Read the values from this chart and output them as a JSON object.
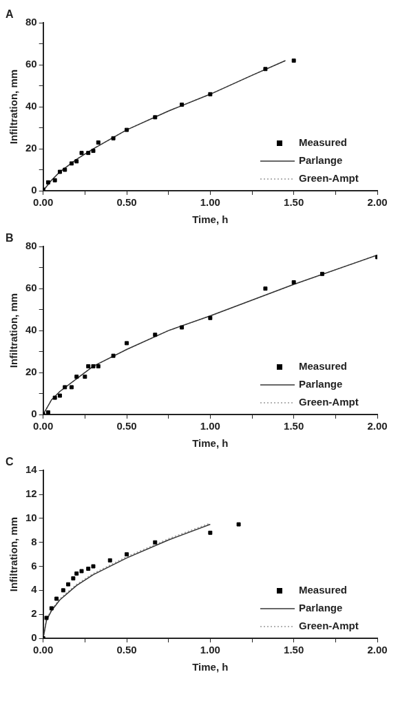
{
  "chart_data": [
    {
      "type": "scatter",
      "title": "A",
      "xlabel": "Time, h",
      "ylabel": "Infiltration, mm",
      "xlim": [
        0,
        2
      ],
      "ylim": [
        0,
        80
      ],
      "xticks": [
        {
          "value": 0,
          "label": "0.00"
        },
        {
          "value": 0.25,
          "label": null
        },
        {
          "value": 0.5,
          "label": "0.50"
        },
        {
          "value": 0.75,
          "label": null
        },
        {
          "value": 1,
          "label": "1.00"
        },
        {
          "value": 1.25,
          "label": null
        },
        {
          "value": 1.5,
          "label": "1.50"
        },
        {
          "value": 1.75,
          "label": null
        },
        {
          "value": 2,
          "label": "2.00"
        }
      ],
      "yticks": [
        0,
        {
          "value": 10,
          "label": null
        },
        20,
        {
          "value": 30,
          "label": null
        },
        40,
        {
          "value": 50,
          "label": null
        },
        60,
        {
          "value": 70,
          "label": null
        },
        80
      ],
      "legend": "bottom right",
      "grid": false,
      "series": [
        {
          "name": "Measured",
          "type": "scatter",
          "marker": "square",
          "color": "#000000",
          "x": [
            0,
            0.03,
            0.07,
            0.1,
            0.13,
            0.17,
            0.2,
            0.23,
            0.27,
            0.3,
            0.33,
            0.42,
            0.5,
            0.67,
            0.83,
            1.0,
            1.33,
            1.5
          ],
          "values": [
            0.5,
            4,
            5,
            9,
            10,
            13,
            14,
            18,
            18,
            19,
            23,
            25,
            29,
            35,
            41,
            46,
            58,
            62
          ]
        },
        {
          "name": "Parlange",
          "type": "line",
          "line_style": "solid",
          "color": "#333333",
          "x": [
            0,
            0.05,
            0.1,
            0.2,
            0.3,
            0.5,
            0.75,
            1.0,
            1.25,
            1.45
          ],
          "values": [
            0,
            5,
            9,
            15,
            20,
            29,
            38,
            46,
            55,
            62
          ]
        },
        {
          "name": "Green-Ampt",
          "type": "line",
          "line_style": "dotted",
          "color": "#999999",
          "x": [
            0,
            0.05,
            0.1,
            0.2,
            0.3,
            0.5,
            0.75,
            1.0,
            1.25,
            1.45
          ],
          "values": [
            0,
            5,
            9,
            15,
            20,
            29,
            38,
            46,
            55,
            62
          ]
        }
      ]
    },
    {
      "type": "scatter",
      "title": "B",
      "xlabel": "Time, h",
      "ylabel": "Infiltration, mm",
      "xlim": [
        0,
        2
      ],
      "ylim": [
        0,
        80
      ],
      "xticks": [
        {
          "value": 0,
          "label": "0.00"
        },
        {
          "value": 0.25,
          "label": null
        },
        {
          "value": 0.5,
          "label": "0.50"
        },
        {
          "value": 0.75,
          "label": null
        },
        {
          "value": 1,
          "label": "1.00"
        },
        {
          "value": 1.25,
          "label": null
        },
        {
          "value": 1.5,
          "label": "1.50"
        },
        {
          "value": 1.75,
          "label": null
        },
        {
          "value": 2,
          "label": "2.00"
        }
      ],
      "yticks": [
        0,
        {
          "value": 10,
          "label": null
        },
        20,
        {
          "value": 30,
          "label": null
        },
        40,
        {
          "value": 50,
          "label": null
        },
        60,
        {
          "value": 70,
          "label": null
        },
        80
      ],
      "legend": "bottom right",
      "grid": false,
      "series": [
        {
          "name": "Measured",
          "type": "scatter",
          "marker": "square",
          "color": "#000000",
          "x": [
            0,
            0.03,
            0.07,
            0.1,
            0.13,
            0.17,
            0.2,
            0.25,
            0.27,
            0.3,
            0.33,
            0.42,
            0.5,
            0.67,
            0.83,
            1.0,
            1.33,
            1.5,
            1.67,
            2.0
          ],
          "values": [
            0,
            1,
            8,
            9,
            13,
            13,
            18,
            18,
            23,
            23,
            23,
            28,
            34,
            38,
            41.5,
            46,
            60,
            63,
            67,
            75
          ]
        },
        {
          "name": "Parlange",
          "type": "line",
          "line_style": "solid",
          "color": "#333333",
          "x": [
            0,
            0.05,
            0.1,
            0.2,
            0.3,
            0.5,
            0.75,
            1.0,
            1.5,
            2.0
          ],
          "values": [
            0,
            7,
            11,
            17,
            23,
            31,
            40,
            47,
            62,
            76
          ]
        },
        {
          "name": "Green-Ampt",
          "type": "line",
          "line_style": "dotted",
          "color": "#999999",
          "x": [
            0,
            0.05,
            0.1,
            0.2,
            0.3,
            0.5,
            0.75,
            1.0,
            1.5,
            2.0
          ],
          "values": [
            0,
            7,
            11,
            17,
            23,
            31,
            40,
            47,
            62,
            76
          ]
        }
      ]
    },
    {
      "type": "scatter",
      "title": "C",
      "xlabel": "Time, h",
      "ylabel": "Infiltration, mm",
      "xlim": [
        0,
        2
      ],
      "ylim": [
        0,
        14
      ],
      "xticks": [
        {
          "value": 0,
          "label": "0.00"
        },
        {
          "value": 0.25,
          "label": null
        },
        {
          "value": 0.5,
          "label": "0.50"
        },
        {
          "value": 0.75,
          "label": null
        },
        {
          "value": 1,
          "label": "1.00"
        },
        {
          "value": 1.25,
          "label": null
        },
        {
          "value": 1.5,
          "label": "1.50"
        },
        {
          "value": 1.75,
          "label": null
        },
        {
          "value": 2,
          "label": "2.00"
        }
      ],
      "yticks": [
        0,
        2,
        4,
        6,
        8,
        10,
        12,
        14
      ],
      "legend": "bottom right",
      "grid": false,
      "series": [
        {
          "name": "Measured",
          "type": "scatter",
          "marker": "square",
          "color": "#000000",
          "x": [
            0,
            0.02,
            0.05,
            0.08,
            0.12,
            0.15,
            0.18,
            0.2,
            0.23,
            0.27,
            0.3,
            0.4,
            0.5,
            0.67,
            1.0,
            1.17
          ],
          "values": [
            0,
            1.7,
            2.5,
            3.3,
            4,
            4.5,
            5,
            5.4,
            5.6,
            5.8,
            6,
            6.5,
            7,
            8,
            8.8,
            9.5
          ]
        },
        {
          "name": "Parlange",
          "type": "line",
          "line_style": "solid",
          "color": "#333333",
          "x": [
            0,
            0.02,
            0.05,
            0.1,
            0.2,
            0.3,
            0.5,
            0.75,
            1.0
          ],
          "values": [
            0,
            1.5,
            2.3,
            3.2,
            4.4,
            5.3,
            6.7,
            8.2,
            9.5
          ]
        },
        {
          "name": "Green-Ampt",
          "type": "line",
          "line_style": "dotted",
          "color": "#999999",
          "x": [
            0,
            0.02,
            0.05,
            0.1,
            0.2,
            0.3,
            0.5,
            0.75,
            1.0
          ],
          "values": [
            0,
            1.6,
            2.4,
            3.3,
            4.5,
            5.4,
            6.8,
            8.3,
            9.6
          ]
        }
      ]
    }
  ]
}
